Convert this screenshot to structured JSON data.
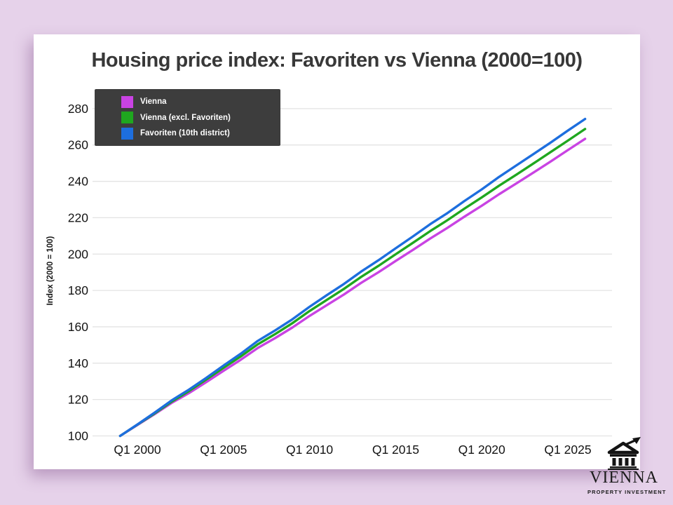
{
  "header": {
    "title": "Housing price index: Favoriten vs Vienna (2000=100)"
  },
  "branding": {
    "name": "VIENNA",
    "tagline": "PROPERTY INVESTMENT",
    "icon": "bank-building-with-growth-arrow"
  },
  "colors": {
    "page_background": "#e6d2ea",
    "card_background": "#ffffff",
    "gridline": "#e3e3e3",
    "tick_text": "#141414",
    "title_text": "#383838",
    "legend_background": "#3d3d3d",
    "legend_text": "#ffffff"
  },
  "chart_data": {
    "type": "line",
    "title": "Housing price index: Favoriten vs Vienna (2000=100)",
    "xlabel": "",
    "ylabel": "Index (2000 = 100)",
    "grid": "horizontal",
    "legend_position": "top-left",
    "ylim": [
      100,
      285
    ],
    "y_ticks": [
      100,
      120,
      140,
      160,
      180,
      200,
      220,
      240,
      260,
      280
    ],
    "x_ticks": [
      {
        "label": "Q1 2000",
        "year": 2000
      },
      {
        "label": "Q1 2005",
        "year": 2005
      },
      {
        "label": "Q1 2010",
        "year": 2010
      },
      {
        "label": "Q1 2015",
        "year": 2015
      },
      {
        "label": "Q1 2020",
        "year": 2020
      },
      {
        "label": "Q1 2025",
        "year": 2025
      }
    ],
    "x_years": [
      1999,
      2000,
      2001,
      2002,
      2003,
      2004,
      2005,
      2006,
      2007,
      2008,
      2009,
      2010,
      2011,
      2012,
      2013,
      2014,
      2015,
      2016,
      2017,
      2018,
      2019,
      2020,
      2021,
      2022,
      2023,
      2024,
      2025,
      2026
    ],
    "series": [
      {
        "name": "Vienna",
        "color": "#c943e3",
        "values": [
          100.0,
          106.0,
          112.0,
          118.2,
          123.6,
          129.6,
          135.8,
          141.9,
          148.4,
          153.8,
          159.6,
          166.0,
          171.9,
          177.8,
          184.2,
          190.0,
          196.2,
          202.3,
          208.5,
          214.4,
          220.6,
          226.6,
          232.9,
          238.8,
          244.8,
          250.9,
          257.2,
          263.4
        ]
      },
      {
        "name": "Vienna (excl. Favoriten)",
        "color": "#1fa71f",
        "values": [
          100.0,
          106.2,
          112.4,
          118.9,
          124.7,
          131.0,
          137.4,
          143.7,
          150.4,
          156.0,
          162.0,
          168.7,
          174.8,
          180.9,
          187.5,
          193.5,
          199.9,
          206.2,
          212.6,
          218.6,
          225.0,
          231.2,
          237.6,
          243.6,
          249.8,
          256.1,
          262.4,
          268.8
        ]
      },
      {
        "name": "Favoriten (10th district)",
        "color": "#1d6ede",
        "values": [
          100.0,
          106.3,
          112.8,
          119.6,
          125.5,
          131.9,
          138.7,
          145.2,
          152.3,
          158.0,
          164.1,
          171.0,
          177.4,
          183.6,
          190.4,
          196.6,
          203.2,
          209.7,
          216.4,
          222.5,
          229.2,
          235.6,
          242.4,
          248.7,
          255.0,
          261.3,
          267.9,
          274.3
        ]
      }
    ]
  }
}
